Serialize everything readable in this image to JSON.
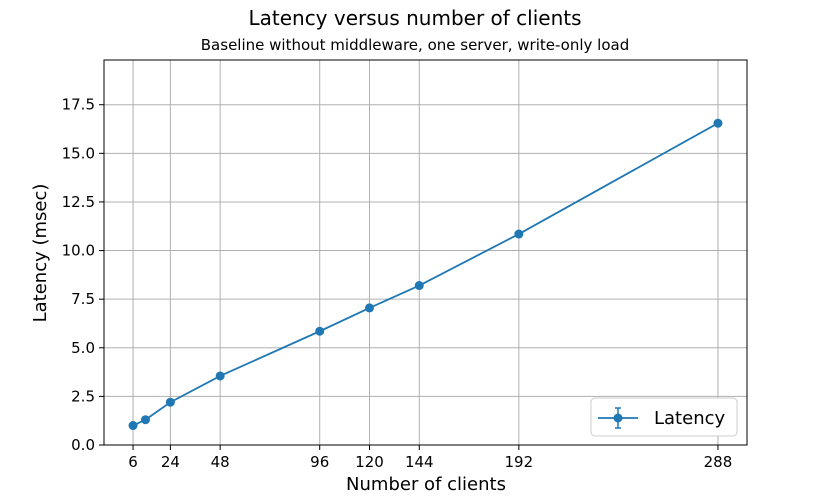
{
  "chart_data": {
    "type": "line",
    "title": "Latency versus number of clients",
    "subtitle": "Baseline without middleware, one server, write-only load",
    "xlabel": "Number of clients",
    "ylabel": "Latency (msec)",
    "x_ticks": [
      6,
      24,
      48,
      96,
      120,
      144,
      192,
      288
    ],
    "y_ticks": [
      "0.0",
      "2.5",
      "5.0",
      "7.5",
      "10.0",
      "12.5",
      "15.0",
      "17.5"
    ],
    "xlim": [
      -8,
      302
    ],
    "ylim": [
      0,
      19.8
    ],
    "grid": true,
    "legend_position": "lower-right",
    "series": [
      {
        "name": "Latency",
        "color": "#1f77b4",
        "marker": "circle",
        "error_bars": true,
        "x": [
          6,
          12,
          24,
          48,
          96,
          120,
          144,
          192,
          288
        ],
        "y": [
          1.0,
          1.3,
          2.2,
          3.55,
          5.85,
          7.05,
          8.2,
          10.85,
          16.55
        ]
      }
    ]
  }
}
